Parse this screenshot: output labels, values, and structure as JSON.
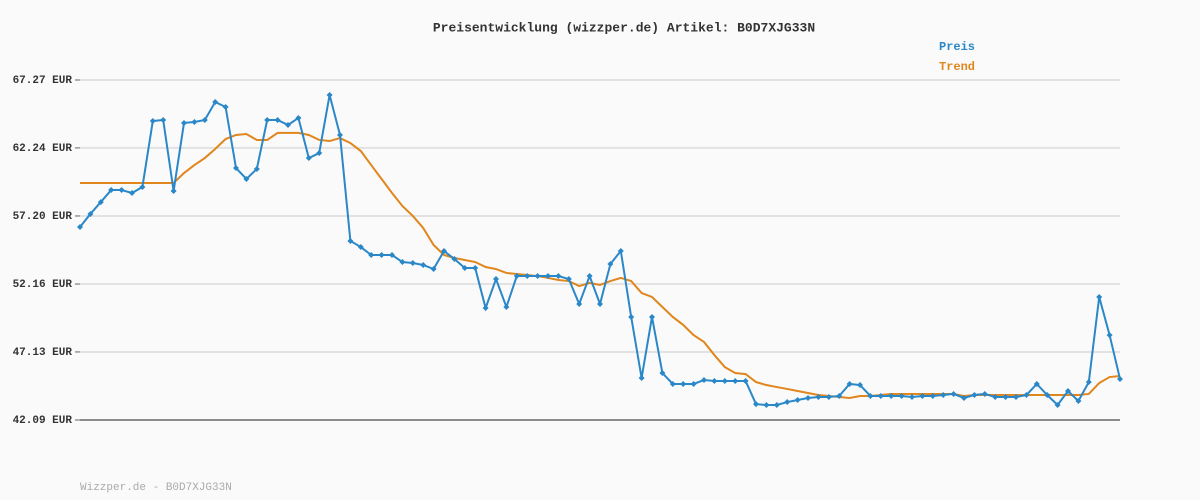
{
  "chart_data": {
    "type": "line",
    "title": "Preisentwicklung (wizzper.de) Artikel: B0D7XJG33N",
    "footer": "Wizzper.de - B0D7XJG33N",
    "ylim": [
      42.09,
      67.27
    ],
    "yticks": [
      {
        "value": 42.09,
        "label": "42.09 EUR"
      },
      {
        "value": 47.13,
        "label": "47.13 EUR"
      },
      {
        "value": 52.16,
        "label": "52.16 EUR"
      },
      {
        "value": 57.2,
        "label": "57.20 EUR"
      },
      {
        "value": 62.24,
        "label": "62.24 EUR"
      },
      {
        "value": 67.27,
        "label": "67.27 EUR"
      }
    ],
    "grid": true,
    "legend": "top-right",
    "series": [
      {
        "name": "Preis",
        "color": "#2a87c8",
        "markers": true,
        "values": [
          56.38,
          57.35,
          58.23,
          59.12,
          59.12,
          58.9,
          59.35,
          64.23,
          64.31,
          59.05,
          64.09,
          64.16,
          64.31,
          65.64,
          65.27,
          60.75,
          59.94,
          60.68,
          64.31,
          64.31,
          63.94,
          64.46,
          61.49,
          61.86,
          66.16,
          63.2,
          55.35,
          54.9,
          54.31,
          54.31,
          54.31,
          53.79,
          53.72,
          53.57,
          53.27,
          54.61,
          54.01,
          53.35,
          53.35,
          50.38,
          52.53,
          50.46,
          52.75,
          52.75,
          52.75,
          52.75,
          52.75,
          52.53,
          50.68,
          52.75,
          50.68,
          53.64,
          54.61,
          49.72,
          45.2,
          49.72,
          45.57,
          44.76,
          44.76,
          44.76,
          45.05,
          44.98,
          44.98,
          44.98,
          44.98,
          43.27,
          43.2,
          43.2,
          43.42,
          43.57,
          43.72,
          43.79,
          43.79,
          43.87,
          44.76,
          44.68,
          43.87,
          43.87,
          43.87,
          43.87,
          43.79,
          43.87,
          43.87,
          43.94,
          44.02,
          43.72,
          43.94,
          44.02,
          43.79,
          43.79,
          43.79,
          43.94,
          44.76,
          43.94,
          43.2,
          44.24,
          43.5,
          44.9,
          51.2,
          48.38,
          45.13
        ]
      },
      {
        "name": "Trend",
        "color": "#e0861c",
        "markers": false,
        "values": [
          59.64,
          59.64,
          59.64,
          59.64,
          59.64,
          59.64,
          59.64,
          59.64,
          59.64,
          59.64,
          60.38,
          60.97,
          61.49,
          62.16,
          62.9,
          63.2,
          63.27,
          62.83,
          62.83,
          63.35,
          63.35,
          63.35,
          63.2,
          62.83,
          62.75,
          62.97,
          62.6,
          62.01,
          60.97,
          59.94,
          58.9,
          57.94,
          57.2,
          56.31,
          55.05,
          54.31,
          54.09,
          53.94,
          53.79,
          53.42,
          53.27,
          52.98,
          52.9,
          52.83,
          52.75,
          52.61,
          52.46,
          52.38,
          52.01,
          52.24,
          52.09,
          52.38,
          52.61,
          52.38,
          51.49,
          51.2,
          50.46,
          49.72,
          49.13,
          48.38,
          47.87,
          46.9,
          46.01,
          45.57,
          45.49,
          44.9,
          44.68,
          44.53,
          44.39,
          44.24,
          44.09,
          43.94,
          43.87,
          43.79,
          43.72,
          43.87,
          43.87,
          43.94,
          44.02,
          44.02,
          44.02,
          44.02,
          44.02,
          44.02,
          44.02,
          43.87,
          43.94,
          43.94,
          43.94,
          43.94,
          43.94,
          43.94,
          43.94,
          43.94,
          43.94,
          43.94,
          43.94,
          44.02,
          44.83,
          45.27,
          45.35
        ]
      }
    ]
  }
}
